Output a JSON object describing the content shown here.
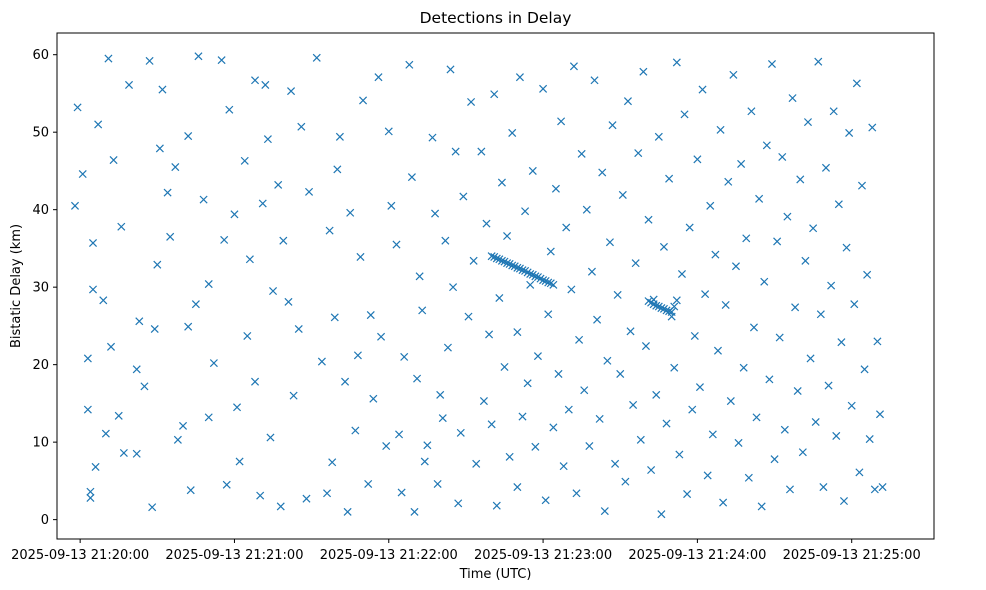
{
  "chart_data": {
    "type": "scatter",
    "title": "Detections in Delay",
    "xlabel": "Time (UTC)",
    "ylabel": "Bistatic Delay (km)",
    "marker": "x",
    "color": "#1f77b4",
    "grid": false,
    "xlim_seconds_after_21_20_00": [
      -9,
      332
    ],
    "ylim": [
      -2.5,
      62.8
    ],
    "x_ticks": [
      {
        "label": "2025-09-13 21:20:00",
        "value": 0
      },
      {
        "label": "2025-09-13 21:21:00",
        "value": 60
      },
      {
        "label": "2025-09-13 21:22:00",
        "value": 120
      },
      {
        "label": "2025-09-13 21:23:00",
        "value": 180
      },
      {
        "label": "2025-09-13 21:24:00",
        "value": 240
      },
      {
        "label": "2025-09-13 21:25:00",
        "value": 300
      }
    ],
    "y_ticks": [
      {
        "label": "0",
        "value": 0
      },
      {
        "label": "10",
        "value": 10
      },
      {
        "label": "20",
        "value": 20
      },
      {
        "label": "30",
        "value": 30
      },
      {
        "label": "40",
        "value": 40
      },
      {
        "label": "50",
        "value": 50
      },
      {
        "label": "60",
        "value": 60
      }
    ],
    "series": [
      {
        "name": "detections",
        "points_t_seconds_delay_km": [
          [
            -2,
            40.5
          ],
          [
            -1,
            53.2
          ],
          [
            1,
            44.6
          ],
          [
            3,
            20.8
          ],
          [
            3,
            14.2
          ],
          [
            4,
            3.6
          ],
          [
            4,
            2.8
          ],
          [
            5,
            29.7
          ],
          [
            5,
            35.7
          ],
          [
            6,
            6.8
          ],
          [
            7,
            51
          ],
          [
            9,
            28.3
          ],
          [
            10,
            11.1
          ],
          [
            11,
            59.5
          ],
          [
            12,
            22.3
          ],
          [
            13,
            46.4
          ],
          [
            15,
            13.4
          ],
          [
            16,
            37.8
          ],
          [
            17,
            8.6
          ],
          [
            19,
            56.1
          ],
          [
            22,
            8.5
          ],
          [
            22,
            19.4
          ],
          [
            23,
            25.6
          ],
          [
            25,
            17.2
          ],
          [
            27,
            59.2
          ],
          [
            28,
            1.6
          ],
          [
            29,
            24.6
          ],
          [
            30,
            32.9
          ],
          [
            31,
            47.9
          ],
          [
            32,
            55.5
          ],
          [
            34,
            42.2
          ],
          [
            35,
            36.5
          ],
          [
            37,
            45.5
          ],
          [
            38,
            10.3
          ],
          [
            40,
            12.1
          ],
          [
            42,
            24.9
          ],
          [
            42,
            49.5
          ],
          [
            43,
            3.8
          ],
          [
            45,
            27.8
          ],
          [
            46,
            59.8
          ],
          [
            48,
            41.3
          ],
          [
            50,
            30.4
          ],
          [
            50,
            13.2
          ],
          [
            52,
            20.2
          ],
          [
            55,
            59.3
          ],
          [
            56,
            36.1
          ],
          [
            57,
            4.5
          ],
          [
            58,
            52.9
          ],
          [
            60,
            39.4
          ],
          [
            61,
            14.5
          ],
          [
            62,
            7.5
          ],
          [
            64,
            46.3
          ],
          [
            65,
            23.7
          ],
          [
            66,
            33.6
          ],
          [
            68,
            56.7
          ],
          [
            68,
            17.8
          ],
          [
            70,
            3.1
          ],
          [
            71,
            40.8
          ],
          [
            72,
            56.1
          ],
          [
            73,
            49.1
          ],
          [
            74,
            10.6
          ],
          [
            75,
            29.5
          ],
          [
            77,
            43.2
          ],
          [
            78,
            1.7
          ],
          [
            79,
            36
          ],
          [
            81,
            28.1
          ],
          [
            82,
            55.3
          ],
          [
            83,
            16
          ],
          [
            85,
            24.6
          ],
          [
            86,
            50.7
          ],
          [
            88,
            2.7
          ],
          [
            89,
            42.3
          ],
          [
            92,
            59.6
          ],
          [
            94,
            20.4
          ],
          [
            96,
            3.4
          ],
          [
            97,
            37.3
          ],
          [
            98,
            7.4
          ],
          [
            99,
            26.1
          ],
          [
            100,
            45.2
          ],
          [
            101,
            49.4
          ],
          [
            103,
            17.8
          ],
          [
            104,
            1
          ],
          [
            105,
            39.6
          ],
          [
            107,
            11.5
          ],
          [
            108,
            21.2
          ],
          [
            109,
            33.9
          ],
          [
            110,
            54.1
          ],
          [
            112,
            4.6
          ],
          [
            113,
            26.4
          ],
          [
            114,
            15.6
          ],
          [
            116,
            57.1
          ],
          [
            117,
            23.6
          ],
          [
            119,
            9.5
          ],
          [
            120,
            50.1
          ],
          [
            121,
            40.5
          ],
          [
            123,
            35.5
          ],
          [
            124,
            11
          ],
          [
            125,
            3.5
          ],
          [
            126,
            21
          ],
          [
            128,
            58.7
          ],
          [
            129,
            44.2
          ],
          [
            130,
            1
          ],
          [
            131,
            18.2
          ],
          [
            132,
            31.4
          ],
          [
            133,
            27
          ],
          [
            134,
            7.5
          ],
          [
            135,
            9.6
          ],
          [
            137,
            49.3
          ],
          [
            138,
            39.5
          ],
          [
            139,
            4.6
          ],
          [
            140,
            16.1
          ],
          [
            141,
            13.1
          ],
          [
            142,
            36
          ],
          [
            143,
            22.2
          ],
          [
            144,
            58.1
          ],
          [
            145,
            30
          ],
          [
            146,
            47.5
          ],
          [
            147,
            2.1
          ],
          [
            148,
            11.2
          ],
          [
            149,
            41.7
          ],
          [
            151,
            26.2
          ],
          [
            152,
            53.9
          ],
          [
            153,
            33.4
          ],
          [
            154,
            7.2
          ],
          [
            156,
            47.5
          ],
          [
            157,
            15.3
          ],
          [
            158,
            38.2
          ],
          [
            159,
            23.9
          ],
          [
            160,
            12.3
          ],
          [
            161,
            54.9
          ],
          [
            162,
            1.8
          ],
          [
            163,
            28.6
          ],
          [
            164,
            43.5
          ],
          [
            165,
            19.7
          ],
          [
            166,
            36.6
          ],
          [
            167,
            8.1
          ],
          [
            168,
            49.9
          ],
          [
            170,
            4.2
          ],
          [
            170,
            24.2
          ],
          [
            171,
            57.1
          ],
          [
            172,
            13.3
          ],
          [
            173,
            39.8
          ],
          [
            174,
            17.6
          ],
          [
            175,
            30.3
          ],
          [
            176,
            45
          ],
          [
            177,
            9.4
          ],
          [
            178,
            21.1
          ],
          [
            180,
            55.6
          ],
          [
            181,
            2.5
          ],
          [
            182,
            26.5
          ],
          [
            183,
            34.6
          ],
          [
            184,
            11.9
          ],
          [
            185,
            42.7
          ],
          [
            186,
            18.8
          ],
          [
            187,
            51.4
          ],
          [
            188,
            6.9
          ],
          [
            189,
            37.7
          ],
          [
            190,
            14.2
          ],
          [
            191,
            29.7
          ],
          [
            192,
            58.5
          ],
          [
            193,
            3.4
          ],
          [
            194,
            23.2
          ],
          [
            195,
            47.2
          ],
          [
            196,
            16.7
          ],
          [
            197,
            40
          ],
          [
            198,
            9.5
          ],
          [
            199,
            32
          ],
          [
            200,
            56.7
          ],
          [
            201,
            25.8
          ],
          [
            202,
            13
          ],
          [
            203,
            44.8
          ],
          [
            204,
            1.1
          ],
          [
            205,
            20.5
          ],
          [
            206,
            35.8
          ],
          [
            207,
            50.9
          ],
          [
            208,
            7.2
          ],
          [
            209,
            29
          ],
          [
            210,
            18.8
          ],
          [
            211,
            41.9
          ],
          [
            212,
            4.9
          ],
          [
            213,
            54
          ],
          [
            214,
            24.3
          ],
          [
            215,
            14.8
          ],
          [
            216,
            33.1
          ],
          [
            217,
            47.3
          ],
          [
            218,
            10.3
          ],
          [
            219,
            57.8
          ],
          [
            220,
            22.4
          ],
          [
            221,
            38.7
          ],
          [
            222,
            6.4
          ],
          [
            223,
            28.4
          ],
          [
            224,
            16.1
          ],
          [
            225,
            49.4
          ],
          [
            226,
            0.7
          ],
          [
            227,
            35.2
          ],
          [
            228,
            12.4
          ],
          [
            229,
            44
          ],
          [
            230,
            26.2
          ],
          [
            231,
            19.6
          ],
          [
            232,
            59
          ],
          [
            233,
            8.4
          ],
          [
            234,
            31.7
          ],
          [
            235,
            52.3
          ],
          [
            236,
            3.3
          ],
          [
            237,
            37.7
          ],
          [
            238,
            14.2
          ],
          [
            239,
            23.7
          ],
          [
            240,
            46.5
          ],
          [
            241,
            17.1
          ],
          [
            242,
            55.5
          ],
          [
            243,
            29.1
          ],
          [
            244,
            5.7
          ],
          [
            245,
            40.5
          ],
          [
            246,
            11
          ],
          [
            247,
            34.2
          ],
          [
            248,
            21.8
          ],
          [
            249,
            50.3
          ],
          [
            250,
            2.2
          ],
          [
            251,
            27.7
          ],
          [
            252,
            43.6
          ],
          [
            253,
            15.3
          ],
          [
            254,
            57.4
          ],
          [
            255,
            32.7
          ],
          [
            256,
            9.9
          ],
          [
            257,
            45.9
          ],
          [
            258,
            19.6
          ],
          [
            259,
            36.3
          ],
          [
            260,
            5.4
          ],
          [
            261,
            52.7
          ],
          [
            262,
            24.8
          ],
          [
            263,
            13.2
          ],
          [
            264,
            41.4
          ],
          [
            265,
            1.7
          ],
          [
            266,
            30.7
          ],
          [
            267,
            48.3
          ],
          [
            268,
            18.1
          ],
          [
            269,
            58.8
          ],
          [
            270,
            7.8
          ],
          [
            271,
            35.9
          ],
          [
            272,
            23.5
          ],
          [
            273,
            46.8
          ],
          [
            274,
            11.6
          ],
          [
            275,
            39.1
          ],
          [
            276,
            3.9
          ],
          [
            277,
            54.4
          ],
          [
            278,
            27.4
          ],
          [
            279,
            16.6
          ],
          [
            280,
            43.9
          ],
          [
            281,
            8.7
          ],
          [
            282,
            33.4
          ],
          [
            283,
            51.3
          ],
          [
            284,
            20.8
          ],
          [
            285,
            37.6
          ],
          [
            286,
            12.6
          ],
          [
            287,
            59.1
          ],
          [
            288,
            26.5
          ],
          [
            289,
            4.2
          ],
          [
            290,
            45.4
          ],
          [
            291,
            17.3
          ],
          [
            292,
            30.2
          ],
          [
            293,
            52.7
          ],
          [
            294,
            10.8
          ],
          [
            295,
            40.7
          ],
          [
            296,
            22.9
          ],
          [
            297,
            2.4
          ],
          [
            298,
            35.1
          ],
          [
            299,
            49.9
          ],
          [
            300,
            14.7
          ],
          [
            301,
            27.8
          ],
          [
            302,
            56.3
          ],
          [
            303,
            6.1
          ],
          [
            304,
            43.1
          ],
          [
            305,
            19.4
          ],
          [
            306,
            31.6
          ],
          [
            307,
            10.4
          ],
          [
            308,
            50.6
          ],
          [
            309,
            3.9
          ],
          [
            310,
            23
          ],
          [
            311,
            13.6
          ],
          [
            312,
            4.2
          ],
          [
            160,
            34
          ],
          [
            161,
            33.9
          ],
          [
            162,
            33.7
          ],
          [
            163,
            33.6
          ],
          [
            164,
            33.4
          ],
          [
            165,
            33.3
          ],
          [
            166,
            33.1
          ],
          [
            167,
            33
          ],
          [
            168,
            32.8
          ],
          [
            169,
            32.7
          ],
          [
            170,
            32.5
          ],
          [
            171,
            32.4
          ],
          [
            172,
            32.2
          ],
          [
            173,
            32.1
          ],
          [
            174,
            31.9
          ],
          [
            175,
            31.7
          ],
          [
            176,
            31.6
          ],
          [
            177,
            31.4
          ],
          [
            178,
            31.3
          ],
          [
            179,
            31.1
          ],
          [
            180,
            30.9
          ],
          [
            181,
            30.8
          ],
          [
            182,
            30.6
          ],
          [
            183,
            30.5
          ],
          [
            184,
            30.3
          ],
          [
            221,
            28.2
          ],
          [
            222,
            28
          ],
          [
            223,
            27.8
          ],
          [
            224,
            27.6
          ],
          [
            225,
            27.5
          ],
          [
            226,
            27.3
          ],
          [
            227,
            27.2
          ],
          [
            228,
            27
          ],
          [
            229,
            26.9
          ],
          [
            230,
            26.8
          ],
          [
            231,
            27.5
          ],
          [
            232,
            28.3
          ]
        ]
      }
    ]
  }
}
